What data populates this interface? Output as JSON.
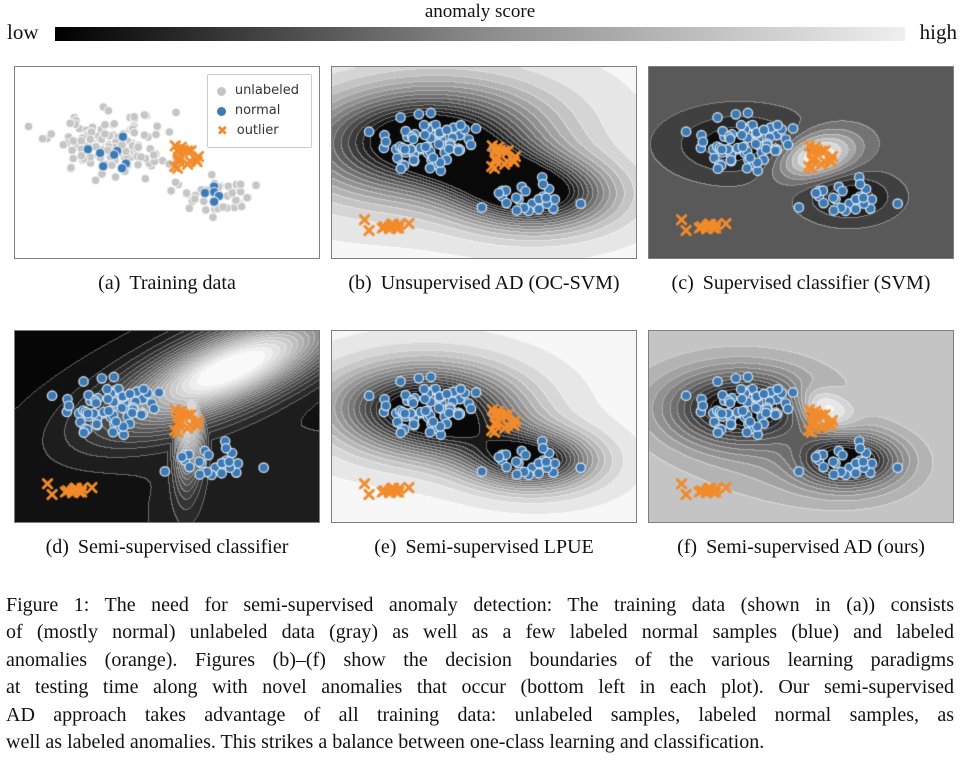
{
  "colorbar": {
    "title": "anomaly score",
    "low": "low",
    "high": "high",
    "gradient": [
      "#000000",
      "#8a8a8a",
      "#efefef"
    ]
  },
  "panels_meta": [
    {
      "label": "(a)",
      "title": "Training data"
    },
    {
      "label": "(b)",
      "title": "Unsupervised AD (OC-SVM)"
    },
    {
      "label": "(c)",
      "title": "Supervised classifier (SVM)"
    },
    {
      "label": "(d)",
      "title": "Semi-supervised classifier"
    },
    {
      "label": "(e)",
      "title": "Semi-supervised LPUE"
    },
    {
      "label": "(f)",
      "title": "Semi-supervised AD (ours)"
    }
  ],
  "legend": {
    "items": [
      {
        "label": "unlabeled",
        "marker": "circle",
        "color_key": "unlabeled_gray"
      },
      {
        "label": "normal",
        "marker": "circle",
        "color_key": "normal_blue"
      },
      {
        "label": "outlier",
        "marker": "x",
        "color_key": "outlier_orange"
      }
    ]
  },
  "colors": {
    "unlabeled_gray": "#c5c5c5",
    "normal_blue": "#3d7ab5",
    "outlier_orange": "#f28b2b",
    "blue_edge": "rgba(219,232,241,0.9)",
    "gray_edge": "rgba(255,255,255,0.85)",
    "panel_border": "#7f7f7f",
    "contour_line": "rgba(255,255,255,0.35)"
  },
  "figure_caption_lines": [
    "Figure 1: The need for semi-supervised anomaly detection: The training data (shown in (a)) consists",
    "of (mostly normal) unlabeled data (gray) as well as a few labeled normal samples (blue) and labeled",
    "anomalies (orange). Figures (b)–(f) show the decision boundaries of the various learning paradigms",
    "at testing time along with novel anomalies that occur (bottom left in each plot). Our semi-supervised",
    "AD approach takes advantage of all training data: unlabeled samples, labeled normal samples, as",
    "well as labeled anomalies. This strikes a balance between one-class learning and classification."
  ],
  "chart_data": {
    "type": "scatter",
    "description": "2x3 grid of 2-D toy anomaly-detection panels; panels b-f overlay grayscale anomaly-score contour fields (dark = low score, light = high score); no axis ticks",
    "test_groups": [
      {
        "color_key": "normal_blue",
        "marker": "circle",
        "cluster": {
          "seed": 21,
          "n": 72,
          "cx": 0.315,
          "cy": 0.4,
          "sx": 0.085,
          "sy": 0.072
        }
      },
      {
        "color_key": "normal_blue",
        "marker": "circle",
        "cluster": {
          "seed": 22,
          "n": 26,
          "cx": 0.655,
          "cy": 0.675,
          "sx": 0.052,
          "sy": 0.042
        }
      },
      {
        "color_key": "outlier_orange",
        "marker": "x",
        "cluster": {
          "seed": 13,
          "n": 17,
          "cx": 0.552,
          "cy": 0.465,
          "sx": 0.02,
          "sy": 0.032
        }
      },
      {
        "color_key": "outlier_orange",
        "marker": "x",
        "cluster": {
          "seed": 24,
          "n": 12,
          "cx": 0.198,
          "cy": 0.83,
          "sx": 0.016,
          "sy": 0.016
        }
      },
      {
        "color_key": "outlier_orange",
        "marker": "x",
        "points": [
          [
            0.107,
            0.8
          ],
          [
            0.122,
            0.856
          ],
          [
            0.253,
            0.82
          ]
        ]
      }
    ],
    "panels": [
      {
        "id": "a",
        "field": null,
        "groups": [
          {
            "color_key": "unlabeled_gray",
            "marker": "circle",
            "cluster": {
              "seed": 11,
              "n": 130,
              "cx": 0.315,
              "cy": 0.41,
              "sx": 0.095,
              "sy": 0.082
            }
          },
          {
            "color_key": "unlabeled_gray",
            "marker": "circle",
            "cluster": {
              "seed": 12,
              "n": 42,
              "cx": 0.655,
              "cy": 0.675,
              "sx": 0.058,
              "sy": 0.048
            }
          },
          {
            "color_key": "normal_blue",
            "marker": "circle",
            "points": [
              [
                0.355,
                0.365
              ],
              [
                0.24,
                0.43
              ],
              [
                0.28,
                0.45
              ],
              [
                0.336,
                0.44
              ],
              [
                0.326,
                0.46
              ],
              [
                0.365,
                0.505
              ],
              [
                0.29,
                0.52
              ],
              [
                0.352,
                0.53
              ]
            ]
          },
          {
            "color_key": "normal_blue",
            "marker": "circle",
            "points": [
              [
                0.655,
                0.625
              ],
              [
                0.625,
                0.66
              ],
              [
                0.655,
                0.655
              ],
              [
                0.671,
                0.675
              ],
              [
                0.655,
                0.705
              ]
            ]
          },
          {
            "color_key": "outlier_orange",
            "marker": "x",
            "cluster": {
              "seed": 13,
              "n": 17,
              "cx": 0.552,
              "cy": 0.465,
              "sx": 0.02,
              "sy": 0.032
            }
          }
        ]
      },
      {
        "id": "b",
        "groups": "test",
        "field": {
          "base": 0.95,
          "levels": 15,
          "clamp": [
            0.045,
            0.955
          ],
          "comps": [
            {
              "cx": 0.3,
              "cy": 0.38,
              "sx": 0.26,
              "sy": 0.19,
              "rot": -8,
              "amp": -1.05
            },
            {
              "cx": 0.66,
              "cy": 0.66,
              "sx": 0.17,
              "sy": 0.125,
              "amp": -0.9
            },
            {
              "cx": 0.49,
              "cy": 0.52,
              "sx": 0.2,
              "sy": 0.11,
              "rot": 32,
              "amp": -0.45
            }
          ]
        }
      },
      {
        "id": "c",
        "groups": "test",
        "field": {
          "base": 0.35,
          "levels": 10,
          "clamp": [
            0.04,
            0.97
          ],
          "comps": [
            {
              "cx": 0.295,
              "cy": 0.4,
              "sx": 0.15,
              "sy": 0.115,
              "amp": -0.34
            },
            {
              "cx": 0.655,
              "cy": 0.675,
              "sx": 0.1,
              "sy": 0.085,
              "amp": -0.34
            },
            {
              "cx": 0.548,
              "cy": 0.46,
              "sx": 0.1,
              "sy": 0.073,
              "rot": -38,
              "amp": 0.72
            }
          ]
        }
      },
      {
        "id": "d",
        "groups": "test",
        "field": {
          "base": 0.035,
          "levels": 22,
          "clamp": [
            0.02,
            0.99
          ],
          "comps": [
            {
              "op": "max",
              "cx": 0.71,
              "cy": 0.19,
              "sx": 0.3,
              "sy": 0.115,
              "rot": -37,
              "amp": 1.0
            },
            {
              "op": "max",
              "cx": 0.575,
              "cy": 0.43,
              "sx": 0.032,
              "sy": 0.23,
              "rot": 2,
              "amp": 0.8
            },
            {
              "cx": 0.92,
              "cy": 0.95,
              "sx": 0.45,
              "sy": 0.4,
              "amp": 0.1
            }
          ]
        }
      },
      {
        "id": "e",
        "groups": "test",
        "field": {
          "base": 0.96,
          "levels": 16,
          "clamp": [
            0.05,
            0.96
          ],
          "comps": [
            {
              "cx": 0.31,
              "cy": 0.4,
              "sx": 0.2,
              "sy": 0.155,
              "amp": -1.0
            },
            {
              "cx": 0.655,
              "cy": 0.67,
              "sx": 0.135,
              "sy": 0.1,
              "amp": -0.85
            },
            {
              "cx": 0.47,
              "cy": 0.56,
              "sx": 0.22,
              "sy": 0.12,
              "rot": 28,
              "amp": -0.28
            }
          ]
        }
      },
      {
        "id": "f",
        "groups": "test",
        "field": {
          "base": 0.78,
          "levels": 15,
          "clamp": [
            0.04,
            0.97
          ],
          "comps": [
            {
              "cx": 0.3,
              "cy": 0.4,
              "sx": 0.165,
              "sy": 0.135,
              "amp": -0.85
            },
            {
              "cx": 0.655,
              "cy": 0.67,
              "sx": 0.11,
              "sy": 0.095,
              "amp": -0.8
            },
            {
              "cx": 0.49,
              "cy": 0.72,
              "sx": 0.22,
              "sy": 0.13,
              "rot": 10,
              "amp": -0.12
            },
            {
              "cx": 0.57,
              "cy": 0.4,
              "sx": 0.055,
              "sy": 0.085,
              "rot": -35,
              "amp": 0.38
            }
          ]
        }
      }
    ]
  }
}
